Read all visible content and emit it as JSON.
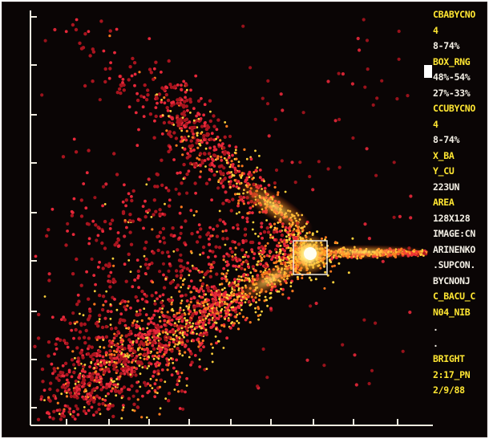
{
  "sidebar": {
    "lines": [
      {
        "text": "CBABYCNO",
        "color": "#ffe632"
      },
      {
        "text": "4",
        "color": "#ffe632"
      },
      {
        "text": "8-74%",
        "color": "#f4f0e6"
      },
      {
        "text": "BOX_RNG",
        "color": "#ffe632"
      },
      {
        "text": "48%-54%",
        "color": "#f4f0e6"
      },
      {
        "text": "27%-33%",
        "color": "#f4f0e6"
      },
      {
        "text": "CCUBYCNO",
        "color": "#ffe632"
      },
      {
        "text": "4",
        "color": "#ffe632"
      },
      {
        "text": "8-74%",
        "color": "#f4f0e6"
      },
      {
        "text": "X_BA",
        "color": "#ffe632"
      },
      {
        "text": "Y_CU",
        "color": "#ffe632"
      },
      {
        "text": "223UN",
        "color": "#f4f0e6"
      },
      {
        "text": "AREA",
        "color": "#ffe632"
      },
      {
        "text": "128X128",
        "color": "#f4f0e6"
      },
      {
        "text": "IMAGE:CN",
        "color": "#f4f0e6"
      },
      {
        "text": "ARINENKO",
        "color": "#f4f0e6"
      },
      {
        "text": ".SUPCON.",
        "color": "#f4f0e6"
      },
      {
        "text": "BYCNONJ",
        "color": "#f4f0e6"
      },
      {
        "text": "C_BACU_C",
        "color": "#ffe632"
      },
      {
        "text": "N04_NIB",
        "color": "#ffe632"
      },
      {
        "text": ".",
        "color": "#f4f0e6"
      },
      {
        "text": ".",
        "color": "#f4f0e6"
      },
      {
        "text": "BRIGHT",
        "color": "#ffe632"
      },
      {
        "text": "2:17_PN",
        "color": "#ffe632"
      },
      {
        "text": "2/9/88",
        "color": "#ffe632"
      }
    ]
  },
  "colors": {
    "background": "#0a0505",
    "axis": "#f0ebe0",
    "dot_dark": "#a8141e",
    "dot_red": "#e8283a",
    "dot_orange": "#ff7a1e",
    "dot_yellow": "#ffd23c",
    "core": "#fff8b4",
    "selection_box": "#f0ebe0"
  },
  "icons": {
    "cursor": "solid-block-cursor"
  }
}
